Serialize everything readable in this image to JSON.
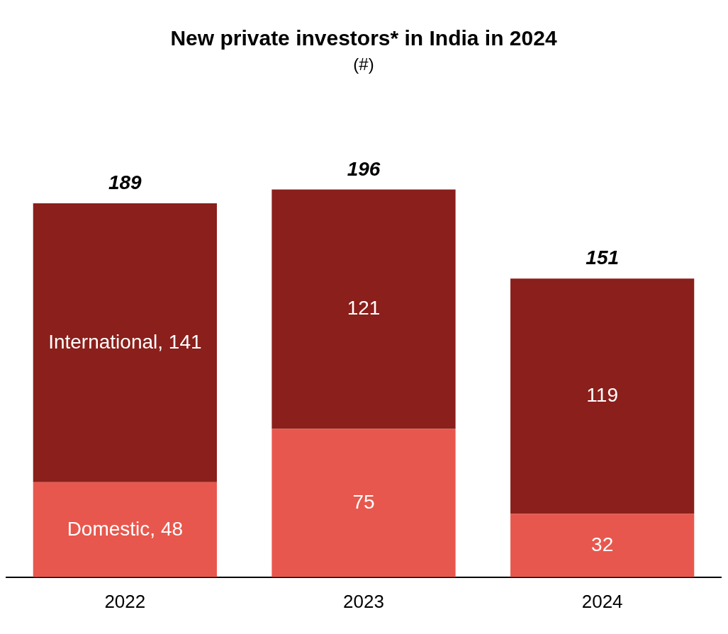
{
  "chart_data": {
    "type": "bar",
    "title": "New private investors* in India in 2024",
    "subtitle": "(#)",
    "categories": [
      "2022",
      "2023",
      "2024"
    ],
    "stacked": true,
    "data_labels": true,
    "legend": false,
    "grid": false,
    "series": [
      {
        "name": "Domestic,",
        "color": "#e8574d",
        "values": [
          48,
          75,
          32
        ]
      },
      {
        "name": "International,",
        "color": "#8a1f1b",
        "values": [
          141,
          121,
          119
        ]
      }
    ],
    "totals": [
      "189",
      "196",
      "151"
    ]
  }
}
